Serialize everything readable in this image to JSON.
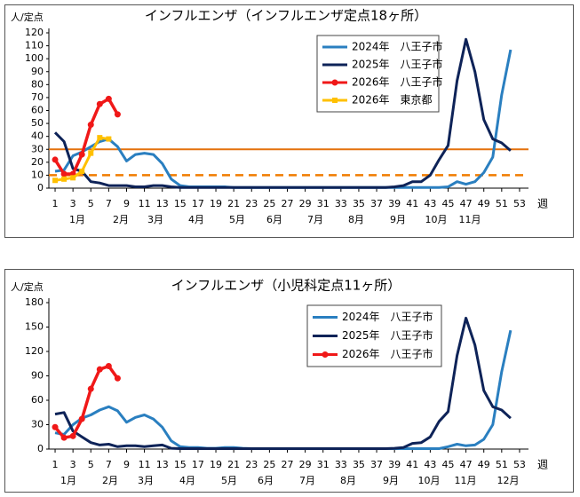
{
  "chart_data": [
    {
      "type": "line",
      "title": "インフルエンザ（インフルエンザ定点18ヶ所）",
      "y_label": "人/定点",
      "x_label": "週",
      "x": [
        1,
        2,
        3,
        4,
        5,
        6,
        7,
        8,
        9,
        10,
        11,
        12,
        13,
        14,
        15,
        16,
        17,
        18,
        19,
        20,
        21,
        22,
        23,
        24,
        25,
        26,
        27,
        28,
        29,
        30,
        31,
        32,
        33,
        34,
        35,
        36,
        37,
        38,
        39,
        40,
        41,
        42,
        43,
        44,
        45,
        46,
        47,
        48,
        49,
        50,
        51,
        52
      ],
      "xlim": [
        0.3,
        54
      ],
      "xticks": [
        1,
        3,
        5,
        7,
        9,
        11,
        13,
        15,
        17,
        19,
        21,
        23,
        25,
        27,
        29,
        31,
        33,
        35,
        37,
        39,
        41,
        43,
        45,
        47,
        49,
        51,
        53
      ],
      "ylim": [
        0,
        120
      ],
      "yticks": [
        0,
        10,
        20,
        30,
        40,
        50,
        60,
        70,
        80,
        90,
        100,
        110,
        120
      ],
      "months": [
        "1月",
        "2月",
        "3月",
        "4月",
        "5月",
        "6月",
        "7月",
        "8月",
        "9月",
        "10月",
        "11月"
      ],
      "reference_lines": [
        {
          "value": 30,
          "color": "#e4700c",
          "style": "solid"
        },
        {
          "value": 10,
          "color": "#f07c00",
          "style": "dashed"
        }
      ],
      "series": [
        {
          "name": "2024年　八王子市",
          "color": "#2a7fc0",
          "marker": "none",
          "values": [
            13,
            14,
            25,
            28,
            32,
            36,
            38,
            32,
            21,
            26,
            27,
            26,
            19,
            7,
            2,
            1,
            1,
            1,
            1,
            1,
            0.5,
            0.5,
            0.5,
            0.5,
            0.5,
            0.5,
            0.5,
            0.5,
            0.5,
            0.5,
            0.5,
            0.5,
            0.5,
            0.5,
            0.5,
            0.5,
            0.5,
            0.5,
            0.5,
            0.5,
            0.5,
            0.5,
            0.5,
            0.5,
            1,
            5,
            3,
            5,
            12,
            24,
            72,
            107
          ]
        },
        {
          "name": "2025年　八王子市",
          "color": "#0e2358",
          "marker": "none",
          "values": [
            43,
            36,
            15,
            13,
            5,
            4,
            2,
            2,
            2,
            1,
            1,
            2,
            2,
            1,
            0.5,
            0.5,
            0.5,
            0.5,
            0.5,
            0.5,
            0.5,
            0.5,
            0.5,
            0.5,
            0.5,
            0.5,
            0.5,
            0.5,
            0.5,
            0.5,
            0.5,
            0.5,
            0.5,
            0.5,
            0.5,
            0.5,
            0.5,
            0.5,
            1,
            2,
            5,
            5,
            10,
            22,
            33,
            83,
            115,
            90,
            53,
            38,
            35,
            29
          ]
        },
        {
          "name": "2026年　八王子市",
          "color": "#f01818",
          "marker": "circle",
          "values": [
            22,
            11,
            11,
            26,
            49,
            65,
            69,
            57,
            null,
            null,
            null,
            null,
            null,
            null,
            null,
            null,
            null,
            null,
            null,
            null,
            null,
            null,
            null,
            null,
            null,
            null,
            null,
            null,
            null,
            null,
            null,
            null,
            null,
            null,
            null,
            null,
            null,
            null,
            null,
            null,
            null,
            null,
            null,
            null,
            null,
            null,
            null,
            null,
            null,
            null,
            null,
            null
          ]
        },
        {
          "name": "2026年　東京都",
          "color": "#ffc000",
          "marker": "square",
          "values": [
            6,
            7,
            8,
            13,
            27,
            39,
            38,
            null,
            null,
            null,
            null,
            null,
            null,
            null,
            null,
            null,
            null,
            null,
            null,
            null,
            null,
            null,
            null,
            null,
            null,
            null,
            null,
            null,
            null,
            null,
            null,
            null,
            null,
            null,
            null,
            null,
            null,
            null,
            null,
            null,
            null,
            null,
            null,
            null,
            null,
            null,
            null,
            null,
            null,
            null,
            null,
            null
          ]
        }
      ]
    },
    {
      "type": "line",
      "title": "インフルエンザ（小児科定点11ヶ所）",
      "y_label": "人/定点",
      "x_label": "週",
      "x": [
        1,
        2,
        3,
        4,
        5,
        6,
        7,
        8,
        9,
        10,
        11,
        12,
        13,
        14,
        15,
        16,
        17,
        18,
        19,
        20,
        21,
        22,
        23,
        24,
        25,
        26,
        27,
        28,
        29,
        30,
        31,
        32,
        33,
        34,
        35,
        36,
        37,
        38,
        39,
        40,
        41,
        42,
        43,
        44,
        45,
        46,
        47,
        48,
        49,
        50,
        51,
        52
      ],
      "xlim": [
        0.3,
        54
      ],
      "xticks": [
        1,
        3,
        5,
        7,
        9,
        11,
        13,
        15,
        17,
        19,
        21,
        23,
        25,
        27,
        29,
        31,
        33,
        35,
        37,
        39,
        41,
        43,
        45,
        47,
        49,
        51,
        53
      ],
      "ylim": [
        0,
        180
      ],
      "yticks": [
        0,
        30,
        60,
        90,
        120,
        150,
        180
      ],
      "months": [
        "1月",
        "2月",
        "3月",
        "4月",
        "5月",
        "6月",
        "7月",
        "8月",
        "9月",
        "10月",
        "11月",
        "12月"
      ],
      "reference_lines": [],
      "series": [
        {
          "name": "2024年　八王子市",
          "color": "#2a7fc0",
          "marker": "none",
          "values": [
            20,
            18,
            30,
            38,
            42,
            48,
            52,
            47,
            33,
            39,
            42,
            37,
            27,
            10,
            3,
            2,
            2,
            1,
            1,
            2,
            2,
            1,
            0.5,
            0.5,
            0.5,
            0.5,
            0.5,
            0.5,
            0.5,
            0.5,
            0.5,
            0.5,
            0.5,
            0.5,
            0.5,
            0.5,
            0.5,
            0.5,
            0.5,
            0.5,
            0.5,
            0.5,
            0.5,
            0.5,
            3,
            6,
            4,
            5,
            12,
            30,
            95,
            146
          ]
        },
        {
          "name": "2025年　八王子市",
          "color": "#0e2358",
          "marker": "none",
          "values": [
            43,
            45,
            22,
            15,
            8,
            5,
            6,
            3,
            4,
            4,
            3,
            4,
            5,
            1,
            0.5,
            0.5,
            0.5,
            0.5,
            0.5,
            0.5,
            0.5,
            0.5,
            0.5,
            0.5,
            0.5,
            0.5,
            0.5,
            0.5,
            0.5,
            0.5,
            0.5,
            0.5,
            0.5,
            0.5,
            0.5,
            0.5,
            0.5,
            0.5,
            1,
            2,
            7,
            8,
            15,
            34,
            46,
            115,
            161,
            128,
            72,
            52,
            48,
            38
          ]
        },
        {
          "name": "2026年　八王子市",
          "color": "#f01818",
          "marker": "circle",
          "values": [
            27,
            14,
            16,
            37,
            74,
            98,
            102,
            87,
            null,
            null,
            null,
            null,
            null,
            null,
            null,
            null,
            null,
            null,
            null,
            null,
            null,
            null,
            null,
            null,
            null,
            null,
            null,
            null,
            null,
            null,
            null,
            null,
            null,
            null,
            null,
            null,
            null,
            null,
            null,
            null,
            null,
            null,
            null,
            null,
            null,
            null,
            null,
            null,
            null,
            null,
            null,
            null
          ]
        }
      ]
    }
  ]
}
